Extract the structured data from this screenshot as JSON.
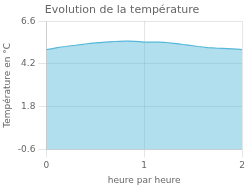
{
  "chart_data": {
    "type": "area",
    "title": "Evolution de la température",
    "xlabel": "heure par heure",
    "ylabel": "Température en °C",
    "x": [
      0.0,
      0.05,
      0.1,
      0.15,
      0.2,
      0.25,
      0.3,
      0.35,
      0.4,
      0.45,
      0.5,
      0.55,
      0.6,
      0.65,
      0.7,
      0.75,
      0.8,
      0.85,
      0.9,
      0.95,
      1.0,
      1.05,
      1.1,
      1.15,
      1.2,
      1.25,
      1.3,
      1.35,
      1.4,
      1.45,
      1.5,
      1.55,
      1.6,
      1.65,
      1.7,
      1.75,
      1.8,
      1.85,
      1.9,
      1.95,
      2.0
    ],
    "values": [
      5.0,
      5.05,
      5.1,
      5.15,
      5.18,
      5.22,
      5.25,
      5.28,
      5.32,
      5.36,
      5.38,
      5.4,
      5.42,
      5.44,
      5.46,
      5.47,
      5.48,
      5.48,
      5.47,
      5.45,
      5.43,
      5.43,
      5.43,
      5.42,
      5.41,
      5.39,
      5.36,
      5.33,
      5.29,
      5.26,
      5.22,
      5.18,
      5.15,
      5.12,
      5.1,
      5.08,
      5.07,
      5.06,
      5.05,
      5.03,
      5.0
    ],
    "color": "#55b8d8",
    "xlim": [
      0,
      2
    ],
    "xticks": [
      0,
      1,
      2
    ],
    "ylim": [
      -0.6,
      6.6
    ],
    "yticks": [
      -0.6,
      1.8,
      4.2,
      6.6
    ],
    "grid": true
  }
}
